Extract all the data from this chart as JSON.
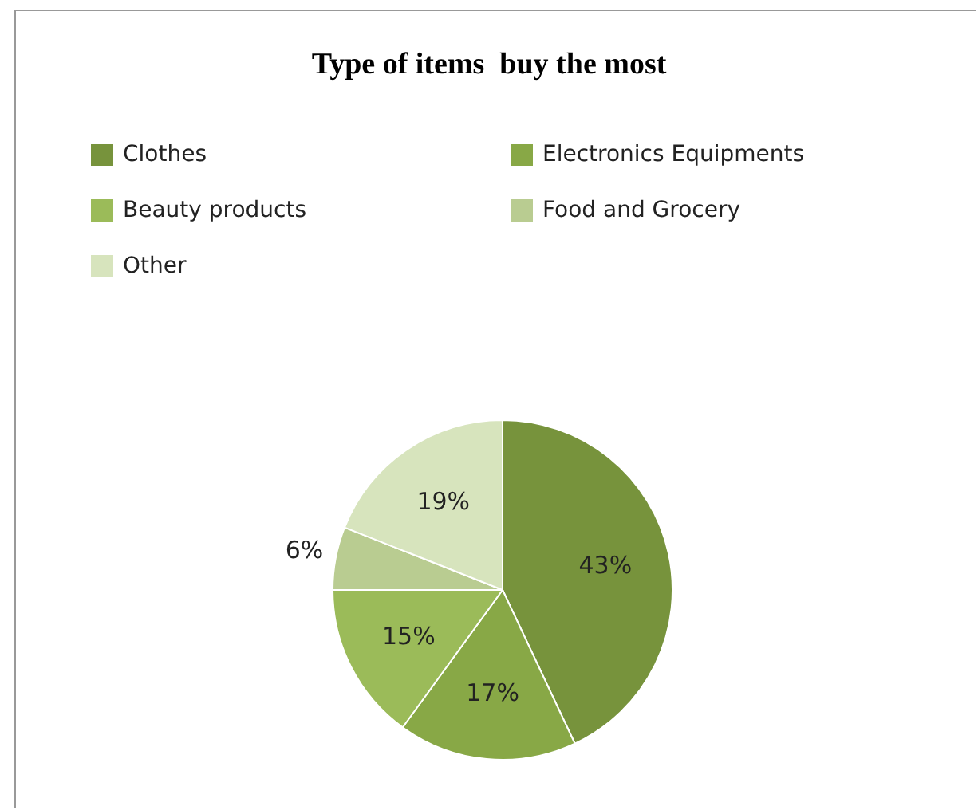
{
  "chart_data": {
    "type": "pie",
    "title": "Type of items  buy the most",
    "categories": [
      "Clothes",
      "Electronics Equipments",
      "Beauty products",
      "Food and Grocery",
      "Other"
    ],
    "values": [
      43,
      17,
      15,
      6,
      19
    ],
    "colors": [
      "#77933c",
      "#88a846",
      "#9bbb59",
      "#b9cc91",
      "#d7e4bd"
    ],
    "value_labels": [
      "43%",
      "17%",
      "15%",
      "6%",
      "19%"
    ],
    "legend": "top"
  }
}
